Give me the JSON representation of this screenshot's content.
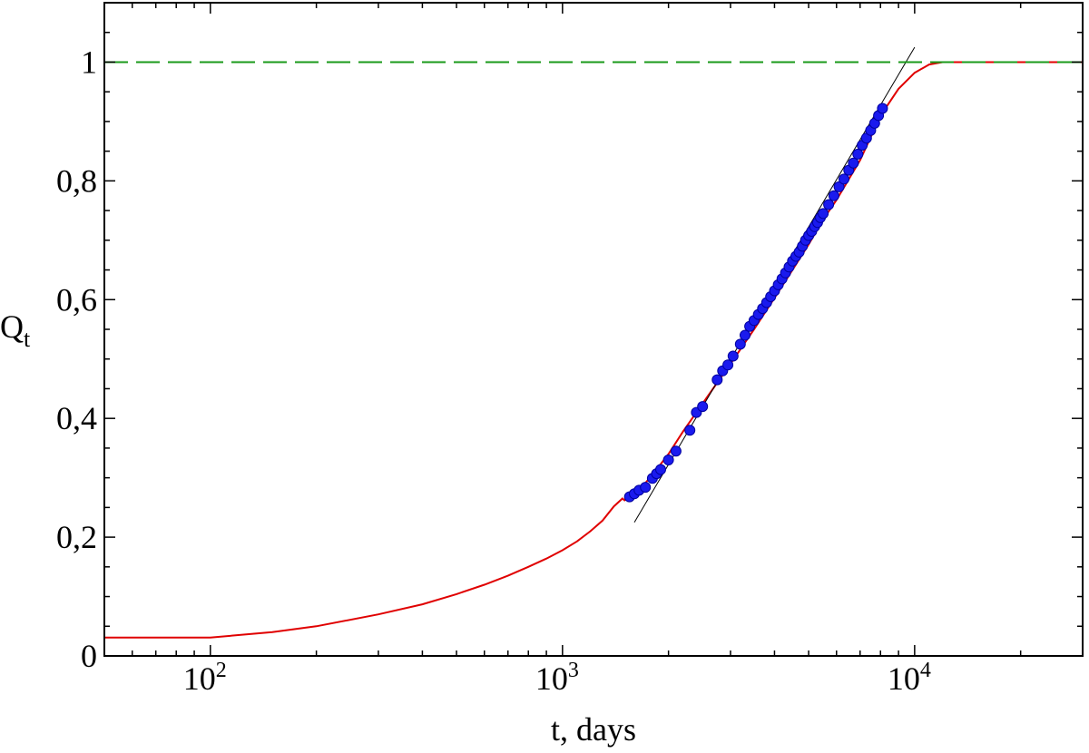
{
  "chart_data": {
    "type": "line",
    "xscale": "log",
    "xlim": [
      50,
      30000
    ],
    "ylim": [
      0,
      1.1
    ],
    "xlabel": "t, days",
    "ylabel": {
      "main": "Q",
      "sub": "t"
    },
    "grid": false,
    "x_major_ticks": [
      {
        "value": 100,
        "base": "10",
        "exp": "2"
      },
      {
        "value": 1000,
        "base": "10",
        "exp": "3"
      },
      {
        "value": 10000,
        "base": "10",
        "exp": "4"
      }
    ],
    "y_major_ticks": [
      {
        "value": 0,
        "label": "0"
      },
      {
        "value": 0.2,
        "label": "0,2"
      },
      {
        "value": 0.4,
        "label": "0,4"
      },
      {
        "value": 0.6,
        "label": "0,6"
      },
      {
        "value": 0.8,
        "label": "0,8"
      },
      {
        "value": 1,
        "label": "1"
      }
    ],
    "colors": {
      "model_curve": "#e00000",
      "observations": "#1a1aee",
      "observations_edge": "#0000a0",
      "asymptote": "#1a9a1a",
      "tangent": "#000000"
    },
    "series": [
      {
        "kind": "line",
        "points": [
          [
            50,
            0.031
          ],
          [
            100,
            0.031
          ],
          [
            150,
            0.04
          ],
          [
            200,
            0.05
          ],
          [
            300,
            0.07
          ],
          [
            400,
            0.087
          ],
          [
            500,
            0.104
          ],
          [
            600,
            0.12
          ],
          [
            700,
            0.135
          ],
          [
            800,
            0.15
          ],
          [
            900,
            0.164
          ],
          [
            1000,
            0.178
          ],
          [
            1100,
            0.193
          ],
          [
            1200,
            0.21
          ],
          [
            1300,
            0.228
          ],
          [
            1400,
            0.252
          ],
          [
            1480,
            0.265
          ],
          [
            1500,
            0.262
          ],
          [
            1550,
            0.268
          ],
          [
            1600,
            0.274
          ],
          [
            1700,
            0.288
          ],
          [
            1800,
            0.305
          ],
          [
            2000,
            0.34
          ],
          [
            2200,
            0.378
          ],
          [
            2500,
            0.425
          ],
          [
            3000,
            0.492
          ],
          [
            3500,
            0.55
          ],
          [
            4000,
            0.603
          ],
          [
            4500,
            0.65
          ],
          [
            5000,
            0.693
          ],
          [
            5500,
            0.735
          ],
          [
            6000,
            0.768
          ],
          [
            7000,
            0.835
          ],
          [
            8000,
            0.91
          ],
          [
            9000,
            0.955
          ],
          [
            10000,
            0.982
          ],
          [
            11000,
            0.996
          ],
          [
            12000,
            1.0
          ],
          [
            20000,
            1.0
          ],
          [
            30000,
            1.0
          ]
        ]
      },
      {
        "kind": "scatter",
        "points": [
          [
            1550,
            0.268
          ],
          [
            1600,
            0.273
          ],
          [
            1650,
            0.279
          ],
          [
            1720,
            0.284
          ],
          [
            1800,
            0.299
          ],
          [
            1850,
            0.307
          ],
          [
            1900,
            0.314
          ],
          [
            2000,
            0.33
          ],
          [
            2100,
            0.345
          ],
          [
            2300,
            0.38
          ],
          [
            2400,
            0.41
          ],
          [
            2500,
            0.42
          ],
          [
            2750,
            0.465
          ],
          [
            2850,
            0.48
          ],
          [
            2950,
            0.49
          ],
          [
            3050,
            0.505
          ],
          [
            3200,
            0.525
          ],
          [
            3300,
            0.54
          ],
          [
            3400,
            0.555
          ],
          [
            3500,
            0.565
          ],
          [
            3600,
            0.575
          ],
          [
            3700,
            0.585
          ],
          [
            3800,
            0.595
          ],
          [
            3900,
            0.605
          ],
          [
            4000,
            0.615
          ],
          [
            4100,
            0.625
          ],
          [
            4200,
            0.635
          ],
          [
            4300,
            0.645
          ],
          [
            4400,
            0.655
          ],
          [
            4500,
            0.665
          ],
          [
            4600,
            0.673
          ],
          [
            4700,
            0.68
          ],
          [
            4800,
            0.69
          ],
          [
            4900,
            0.7
          ],
          [
            5000,
            0.708
          ],
          [
            5100,
            0.715
          ],
          [
            5200,
            0.723
          ],
          [
            5300,
            0.73
          ],
          [
            5400,
            0.738
          ],
          [
            5500,
            0.745
          ],
          [
            5700,
            0.76
          ],
          [
            5900,
            0.775
          ],
          [
            6100,
            0.79
          ],
          [
            6300,
            0.803
          ],
          [
            6500,
            0.818
          ],
          [
            6700,
            0.83
          ],
          [
            6900,
            0.845
          ],
          [
            7100,
            0.86
          ],
          [
            7300,
            0.872
          ],
          [
            7500,
            0.885
          ],
          [
            7700,
            0.897
          ],
          [
            7900,
            0.91
          ],
          [
            8100,
            0.922
          ]
        ]
      },
      {
        "kind": "tangent",
        "points": [
          [
            1600,
            0.225
          ],
          [
            10000,
            1.025
          ]
        ]
      },
      {
        "kind": "asymptote",
        "y": 1,
        "style": "dashed"
      }
    ]
  }
}
